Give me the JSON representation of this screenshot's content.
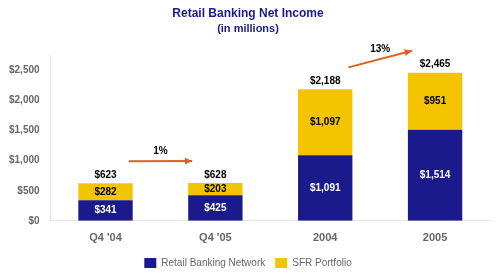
{
  "chart_data": {
    "type": "bar",
    "title": "Retail Banking Net Income",
    "subtitle": "(in millions)",
    "categories": [
      "Q4 '04",
      "Q4 '05",
      "2004",
      "2005"
    ],
    "series": [
      {
        "name": "Retail Banking Network",
        "color": "#1a1a8c",
        "values": [
          341,
          425,
          1091,
          1514
        ],
        "value_labels": [
          "$341",
          "$425",
          "$1,091",
          "$1,514"
        ]
      },
      {
        "name": "SFR Portfolio",
        "color": "#f5c400",
        "values": [
          282,
          203,
          1097,
          951
        ],
        "value_labels": [
          "$282",
          "$203",
          "$1,097",
          "$951"
        ]
      }
    ],
    "totals": {
      "values": [
        623,
        628,
        2188,
        2465
      ],
      "value_labels": [
        "$623",
        "$628",
        "$2,188",
        "$2,465"
      ]
    },
    "annotations": [
      {
        "text": "1%",
        "from": "Q4 '04",
        "to": "Q4 '05",
        "color": "#e06020"
      },
      {
        "text": "13%",
        "from": "2004",
        "to": "2005",
        "color": "#e06020"
      }
    ],
    "title_color": "#1a1a8c",
    "ylim": [
      0,
      2750
    ],
    "yticks": [
      {
        "value": 0,
        "label": "$0"
      },
      {
        "value": 500,
        "label": "$500"
      },
      {
        "value": 1000,
        "label": "$1,000"
      },
      {
        "value": 1500,
        "label": "$1,500"
      },
      {
        "value": 2000,
        "label": "$2,000"
      },
      {
        "value": 2500,
        "label": "$2,500"
      }
    ],
    "stacked": true,
    "data_labels": true,
    "grid": false,
    "legend": "bottom"
  }
}
